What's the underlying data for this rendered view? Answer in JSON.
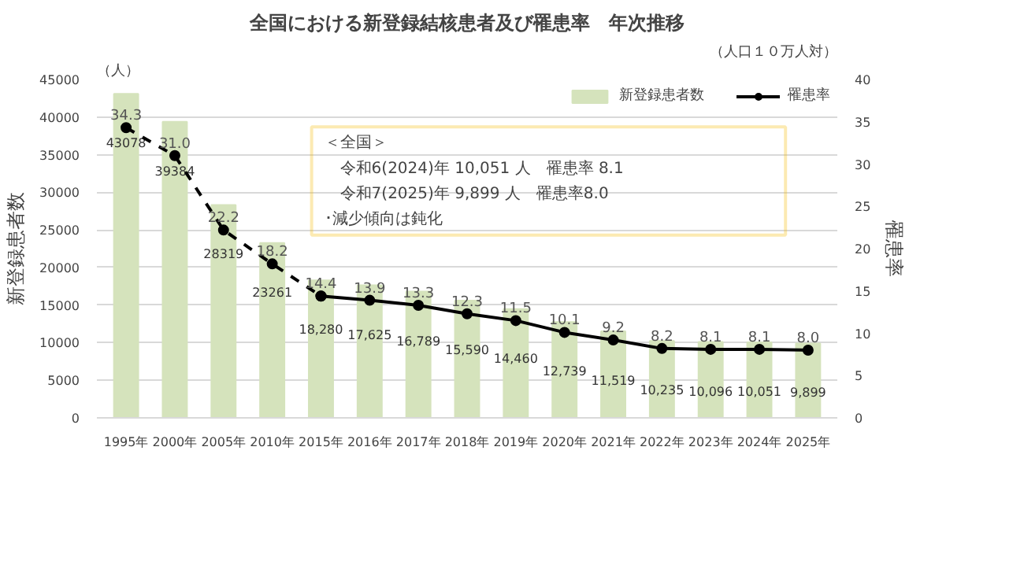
{
  "chart_data": {
    "type": "bar",
    "title": "全国における新登録結核患者及び罹患率　年次推移",
    "ylabel": "新登録患者数",
    "y2label": "罹患率",
    "annotations": [
      "（人）",
      "（人口１０万人対）",
      "＜全国＞",
      "　令和6(2024)年 10,051 人　罹患率 8.1",
      "　令和7(2025)年 9,899 人　罹患率8.0",
      "･減少傾向は鈍化"
    ],
    "categories": [
      "1995年",
      "2000年",
      "2005年",
      "2010年",
      "2015年",
      "2016年",
      "2017年",
      "2018年",
      "2019年",
      "2020年",
      "2021年",
      "2022年",
      "2023年",
      "2024年",
      "2025年"
    ],
    "series": [
      {
        "name": "新登録患者数",
        "color": "#d5e3bc",
        "values": [
          43078,
          39384,
          28319,
          23261,
          18280,
          17625,
          16789,
          15590,
          14460,
          12739,
          11519,
          10235,
          10096,
          10051,
          9899
        ],
        "value_labels": [
          "43078",
          "39384",
          "28319",
          "23261",
          "18,280",
          "17,625",
          "16,789",
          "15,590",
          "14,460",
          "12,739",
          "11,519",
          "10,235",
          "10,096",
          "10,051",
          "9,899"
        ]
      },
      {
        "type": "line",
        "axis": "y2",
        "color": "#000000",
        "line_style": "dashed",
        "marker": "circle",
        "values": [
          34.3,
          31.0,
          22.2,
          18.2,
          14.4,
          null,
          null,
          null,
          null,
          null,
          null,
          null,
          null,
          null,
          null
        ],
        "value_labels": [
          "34.3",
          "31.0",
          "22.2",
          "18.2",
          null,
          null,
          null,
          null,
          null,
          null,
          null,
          null,
          null,
          null,
          null
        ]
      },
      {
        "name": "罹患率",
        "type": "line",
        "axis": "y2",
        "color": "#000000",
        "line_style": "solid",
        "marker": "circle",
        "values": [
          null,
          null,
          null,
          null,
          14.4,
          13.9,
          13.3,
          12.3,
          11.5,
          10.1,
          9.2,
          8.2,
          8.1,
          8.1,
          8.0
        ],
        "value_labels": [
          null,
          null,
          null,
          null,
          "14.4",
          "13.9",
          "13.3",
          "12.3",
          "11.5",
          "10.1",
          "9.2",
          "8.2",
          "8.1",
          "8.1",
          "8.0"
        ]
      }
    ],
    "ylim": [
      0,
      45000
    ],
    "yticks": [
      0,
      5000,
      10000,
      15000,
      20000,
      25000,
      30000,
      35000,
      40000,
      45000
    ],
    "y2lim": [
      0,
      40
    ],
    "y2ticks": [
      0,
      5,
      10,
      15,
      20,
      25,
      30,
      35,
      40
    ],
    "grid": "y",
    "legend": "top right"
  }
}
